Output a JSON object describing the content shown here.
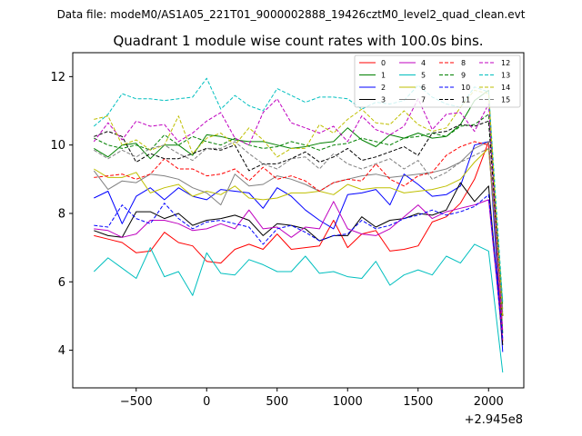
{
  "figure": {
    "suptitle": "Data file: modeM0/AS1A05_221T01_9000002888_19426cztM0_level2_quad_clean.evt"
  },
  "chart_data": {
    "type": "line",
    "title": "Quadrant 1 module wise count rates with 100.0s bins.",
    "xlabel": "",
    "ylabel": "",
    "x_offset_label": "+2.945e8",
    "xlim": [
      -950,
      2250
    ],
    "ylim": [
      2.9,
      12.7
    ],
    "xticks": [
      -500,
      0,
      500,
      1000,
      1500,
      2000
    ],
    "xtick_labels": [
      "−500",
      "0",
      "500",
      "1000",
      "1500",
      "2000"
    ],
    "yticks": [
      4,
      6,
      8,
      10,
      12
    ],
    "ytick_labels": [
      "4",
      "6",
      "8",
      "10",
      "12"
    ],
    "legend_position": "top-right",
    "x": [
      -800,
      -700,
      -600,
      -500,
      -400,
      -300,
      -200,
      -100,
      0,
      100,
      200,
      300,
      400,
      500,
      600,
      700,
      800,
      900,
      1000,
      1100,
      1200,
      1300,
      1400,
      1500,
      1600,
      1700,
      1800,
      1900,
      2000,
      2100
    ],
    "series": [
      {
        "name": "0",
        "color": "#ff0000",
        "style": "solid",
        "values": [
          7.35,
          7.25,
          7.15,
          6.85,
          6.9,
          7.45,
          7.15,
          7.05,
          6.6,
          6.55,
          6.95,
          7.1,
          6.95,
          7.4,
          6.95,
          7.0,
          7.05,
          7.8,
          7.0,
          7.4,
          7.5,
          6.9,
          6.95,
          7.05,
          7.75,
          7.9,
          8.3,
          9.0,
          10.1,
          4.25
        ]
      },
      {
        "name": "1",
        "color": "#008000",
        "style": "solid",
        "values": [
          9.9,
          9.65,
          10.0,
          10.05,
          9.6,
          10.0,
          10.0,
          9.7,
          10.3,
          10.25,
          10.15,
          10.1,
          10.1,
          10.0,
          9.9,
          9.95,
          10.05,
          10.1,
          10.5,
          10.15,
          9.95,
          10.3,
          10.2,
          10.35,
          10.2,
          10.25,
          10.6,
          11.3,
          11.6,
          4.5
        ]
      },
      {
        "name": "2",
        "color": "#0000ff",
        "style": "solid",
        "values": [
          8.45,
          8.65,
          7.7,
          8.5,
          8.75,
          8.4,
          8.75,
          8.5,
          8.4,
          8.7,
          8.65,
          8.6,
          8.15,
          8.75,
          8.5,
          8.1,
          7.8,
          7.55,
          8.55,
          8.6,
          8.7,
          8.25,
          9.15,
          8.85,
          8.5,
          8.55,
          8.8,
          10.0,
          10.1,
          3.95
        ]
      },
      {
        "name": "3",
        "color": "#000000",
        "style": "solid",
        "values": [
          7.5,
          7.35,
          7.3,
          8.05,
          8.05,
          7.85,
          8.0,
          7.65,
          7.8,
          7.85,
          7.95,
          7.8,
          7.35,
          7.7,
          7.65,
          7.55,
          7.2,
          7.35,
          7.35,
          7.9,
          7.6,
          7.8,
          7.85,
          8.0,
          7.95,
          8.1,
          8.9,
          8.35,
          8.8,
          4.15
        ]
      },
      {
        "name": "4",
        "color": "#bf00bf",
        "style": "solid",
        "values": [
          7.55,
          7.5,
          7.3,
          7.4,
          7.8,
          7.8,
          7.7,
          7.5,
          7.55,
          7.7,
          7.55,
          8.1,
          7.55,
          7.6,
          7.3,
          7.6,
          7.55,
          8.35,
          7.55,
          7.4,
          7.35,
          7.55,
          7.9,
          8.25,
          7.85,
          8.05,
          8.15,
          8.25,
          8.4,
          4.3
        ]
      },
      {
        "name": "5",
        "color": "#00bfbf",
        "style": "solid",
        "values": [
          6.3,
          6.7,
          6.4,
          6.1,
          7.0,
          6.15,
          6.3,
          5.6,
          6.85,
          6.25,
          6.2,
          6.65,
          6.5,
          6.3,
          6.3,
          6.75,
          6.25,
          6.3,
          6.15,
          6.1,
          6.6,
          5.9,
          6.2,
          6.35,
          6.2,
          6.75,
          6.55,
          7.1,
          6.9,
          3.35
        ]
      },
      {
        "name": "6",
        "color": "#bfbf00",
        "style": "solid",
        "values": [
          9.3,
          9.05,
          9.05,
          9.2,
          8.6,
          8.75,
          8.85,
          8.5,
          8.65,
          8.55,
          8.8,
          8.45,
          8.4,
          8.45,
          8.6,
          8.6,
          8.65,
          8.55,
          8.85,
          8.7,
          8.75,
          8.75,
          8.6,
          8.65,
          8.7,
          8.8,
          9.0,
          9.5,
          9.9,
          5.0
        ]
      },
      {
        "name": "7",
        "color": "#808080",
        "style": "solid",
        "values": [
          9.25,
          8.7,
          8.95,
          8.9,
          9.15,
          9.1,
          9.0,
          8.75,
          8.6,
          8.25,
          9.15,
          8.8,
          8.85,
          9.1,
          9.0,
          8.85,
          8.65,
          8.9,
          9.0,
          9.1,
          9.15,
          9.05,
          9.1,
          9.15,
          9.2,
          9.3,
          9.5,
          9.9,
          10.1,
          5.2
        ]
      },
      {
        "name": "8",
        "color": "#ff0000",
        "style": "dashed",
        "values": [
          9.05,
          9.1,
          9.15,
          9.0,
          9.15,
          9.6,
          9.3,
          9.3,
          9.1,
          9.15,
          9.3,
          8.95,
          9.35,
          9.0,
          9.1,
          8.95,
          8.65,
          8.9,
          9.0,
          8.95,
          9.45,
          9.0,
          8.8,
          9.1,
          9.2,
          9.7,
          9.95,
          10.1,
          10.0,
          5.0
        ]
      },
      {
        "name": "9",
        "color": "#008000",
        "style": "dashed",
        "values": [
          10.2,
          10.0,
          9.9,
          10.0,
          9.85,
          10.3,
          10.0,
          10.25,
          10.1,
          10.0,
          10.2,
          10.0,
          9.9,
          9.95,
          10.1,
          10.0,
          9.85,
          10.0,
          10.05,
          10.2,
          10.1,
          10.0,
          10.2,
          10.25,
          10.35,
          10.25,
          10.55,
          10.6,
          10.9,
          5.3
        ]
      },
      {
        "name": "10",
        "color": "#0000ff",
        "style": "dashed",
        "values": [
          7.65,
          7.6,
          8.25,
          7.85,
          7.7,
          8.3,
          7.85,
          7.55,
          7.75,
          7.8,
          7.7,
          7.6,
          7.1,
          7.55,
          7.65,
          7.45,
          7.2,
          7.35,
          7.4,
          7.8,
          7.55,
          7.65,
          7.85,
          7.95,
          8.1,
          7.95,
          8.05,
          8.2,
          8.55,
          4.35
        ]
      },
      {
        "name": "11",
        "color": "#000000",
        "style": "dashed",
        "values": [
          10.25,
          10.4,
          10.25,
          9.5,
          9.75,
          9.6,
          9.6,
          9.75,
          9.9,
          9.85,
          10.0,
          9.25,
          9.45,
          9.45,
          9.6,
          9.8,
          9.5,
          9.65,
          9.9,
          9.55,
          9.65,
          9.8,
          9.95,
          9.7,
          10.35,
          10.4,
          10.6,
          10.55,
          10.7,
          5.0
        ]
      },
      {
        "name": "12",
        "color": "#bf00bf",
        "style": "dashed",
        "values": [
          10.1,
          10.65,
          10.15,
          10.7,
          10.55,
          10.6,
          10.1,
          10.35,
          10.7,
          10.95,
          10.2,
          10.0,
          10.95,
          11.35,
          10.65,
          10.5,
          10.35,
          10.55,
          10.1,
          10.85,
          10.45,
          10.3,
          10.55,
          11.35,
          10.45,
          10.9,
          10.95,
          10.4,
          11.2,
          4.55
        ]
      },
      {
        "name": "13",
        "color": "#00bfbf",
        "style": "dashed",
        "values": [
          10.55,
          10.9,
          11.5,
          11.35,
          11.35,
          11.3,
          11.35,
          11.4,
          11.95,
          11.05,
          11.45,
          11.15,
          11.0,
          11.65,
          11.45,
          11.25,
          11.4,
          11.4,
          11.35,
          11.05,
          11.25,
          11.2,
          11.3,
          11.75,
          11.4,
          11.2,
          11.1,
          11.7,
          11.55,
          5.4
        ]
      },
      {
        "name": "14",
        "color": "#bfbf00",
        "style": "dashed",
        "values": [
          10.75,
          10.85,
          10.0,
          10.15,
          9.85,
          10.0,
          10.85,
          9.75,
          10.2,
          10.35,
          10.0,
          10.5,
          10.15,
          9.65,
          9.9,
          9.9,
          10.6,
          10.35,
          10.75,
          11.05,
          10.65,
          10.6,
          11.0,
          10.6,
          10.4,
          10.5,
          11.1,
          11.6,
          11.5,
          5.0
        ]
      },
      {
        "name": "15",
        "color": "#808080",
        "style": "dashed",
        "values": [
          9.85,
          9.6,
          9.85,
          9.65,
          9.9,
          10.0,
          9.75,
          9.55,
          9.9,
          9.9,
          10.1,
          9.75,
          9.45,
          9.3,
          9.6,
          9.65,
          9.3,
          9.75,
          9.45,
          9.3,
          9.45,
          9.6,
          9.3,
          9.55,
          9.0,
          9.2,
          9.5,
          9.7,
          9.9,
          5.1
        ]
      }
    ]
  }
}
